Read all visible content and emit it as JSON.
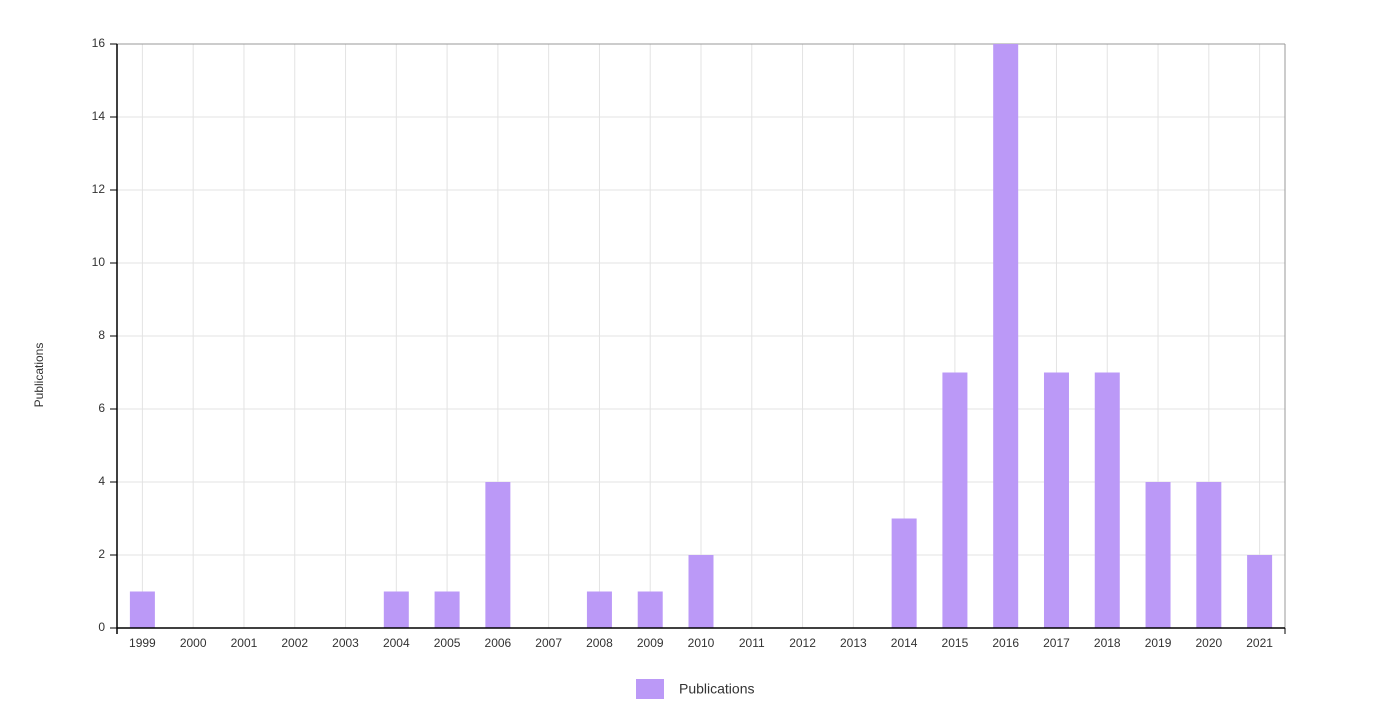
{
  "chart_data": {
    "type": "bar",
    "ylabel": "Publications",
    "categories": [
      "1999",
      "2000",
      "2001",
      "2002",
      "2003",
      "2004",
      "2005",
      "2006",
      "2007",
      "2008",
      "2009",
      "2010",
      "2011",
      "2012",
      "2013",
      "2014",
      "2015",
      "2016",
      "2017",
      "2018",
      "2019",
      "2020",
      "2021"
    ],
    "series": [
      {
        "name": "Publications",
        "color": "#bb99f7",
        "values": [
          1,
          0,
          0,
          0,
          0,
          1,
          1,
          4,
          0,
          1,
          1,
          2,
          0,
          0,
          0,
          3,
          7,
          16,
          7,
          7,
          4,
          4,
          2
        ]
      }
    ],
    "ylim": [
      0,
      16
    ],
    "yticks": [
      0,
      2,
      4,
      6,
      8,
      10,
      12,
      14,
      16
    ],
    "grid": true
  }
}
